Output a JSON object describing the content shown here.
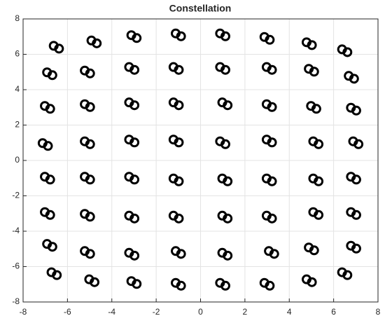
{
  "chart_data": {
    "type": "scatter",
    "title": "Constellation",
    "xlim": [
      -8,
      8
    ],
    "ylim": [
      -8,
      8
    ],
    "xticks": [
      -8,
      -6,
      -4,
      -2,
      0,
      2,
      4,
      6,
      8
    ],
    "yticks": [
      -8,
      -6,
      -4,
      -2,
      0,
      2,
      4,
      6,
      8
    ],
    "grid": true,
    "color": "#000000",
    "x": [
      -6.62,
      -6.38,
      -4.92,
      -4.68,
      -3.12,
      -2.88,
      -1.12,
      -0.88,
      0.88,
      1.12,
      2.88,
      3.12,
      4.78,
      5.02,
      6.38,
      6.62,
      -6.92,
      -6.68,
      -5.22,
      -4.98,
      -3.22,
      -2.98,
      -1.22,
      -0.98,
      0.88,
      1.12,
      2.98,
      3.22,
      4.88,
      5.12,
      6.68,
      6.92,
      -7.02,
      -6.78,
      -5.22,
      -4.98,
      -3.22,
      -2.98,
      -1.22,
      -0.98,
      0.98,
      1.22,
      2.98,
      3.22,
      4.98,
      5.22,
      6.78,
      7.02,
      -7.12,
      -6.88,
      -5.22,
      -4.98,
      -3.22,
      -2.98,
      -1.22,
      -0.98,
      0.88,
      1.12,
      2.98,
      3.22,
      5.08,
      5.32,
      6.88,
      7.12,
      -7.02,
      -6.78,
      -5.22,
      -4.98,
      -3.22,
      -2.98,
      -1.22,
      -0.98,
      0.98,
      1.22,
      2.98,
      3.22,
      5.08,
      5.32,
      6.78,
      7.02,
      -7.02,
      -6.78,
      -5.22,
      -4.98,
      -3.22,
      -2.98,
      -1.22,
      -0.98,
      0.98,
      1.22,
      2.98,
      3.22,
      5.08,
      5.32,
      6.78,
      7.02,
      -6.92,
      -6.68,
      -5.22,
      -4.98,
      -3.22,
      -2.98,
      -1.12,
      -0.88,
      0.98,
      1.22,
      3.08,
      3.32,
      4.88,
      5.12,
      6.78,
      7.02,
      -6.72,
      -6.48,
      -5.02,
      -4.78,
      -3.12,
      -2.88,
      -1.12,
      -0.88,
      0.88,
      1.12,
      2.88,
      3.12,
      4.78,
      5.02,
      6.38,
      6.62
    ],
    "y": [
      6.48,
      6.32,
      6.78,
      6.62,
      7.08,
      6.92,
      7.18,
      7.02,
      7.18,
      7.02,
      6.98,
      6.82,
      6.68,
      6.52,
      6.28,
      6.12,
      4.98,
      4.82,
      5.08,
      4.92,
      5.28,
      5.12,
      5.28,
      5.12,
      5.28,
      5.12,
      5.28,
      5.12,
      5.18,
      5.02,
      4.78,
      4.62,
      3.08,
      2.92,
      3.18,
      3.02,
      3.28,
      3.12,
      3.28,
      3.12,
      3.28,
      3.12,
      3.18,
      3.02,
      3.08,
      2.92,
      2.98,
      2.82,
      0.98,
      0.82,
      1.08,
      0.92,
      1.18,
      1.02,
      1.18,
      1.02,
      1.08,
      0.92,
      1.18,
      1.02,
      1.08,
      0.92,
      1.08,
      0.92,
      -0.92,
      -1.08,
      -0.92,
      -1.08,
      -0.92,
      -1.08,
      -1.02,
      -1.18,
      -1.02,
      -1.18,
      -1.02,
      -1.18,
      -1.02,
      -1.18,
      -0.92,
      -1.08,
      -2.92,
      -3.08,
      -3.02,
      -3.18,
      -3.12,
      -3.28,
      -3.12,
      -3.28,
      -3.12,
      -3.28,
      -3.12,
      -3.28,
      -2.92,
      -3.08,
      -2.92,
      -3.08,
      -4.72,
      -4.88,
      -5.12,
      -5.28,
      -5.22,
      -5.38,
      -5.12,
      -5.28,
      -5.22,
      -5.38,
      -5.12,
      -5.28,
      -4.92,
      -5.08,
      -4.82,
      -4.98,
      -6.32,
      -6.48,
      -6.72,
      -6.88,
      -6.82,
      -6.98,
      -6.92,
      -7.08,
      -6.92,
      -7.08,
      -6.92,
      -7.08,
      -6.72,
      -6.88,
      -6.32,
      -6.48
    ]
  }
}
